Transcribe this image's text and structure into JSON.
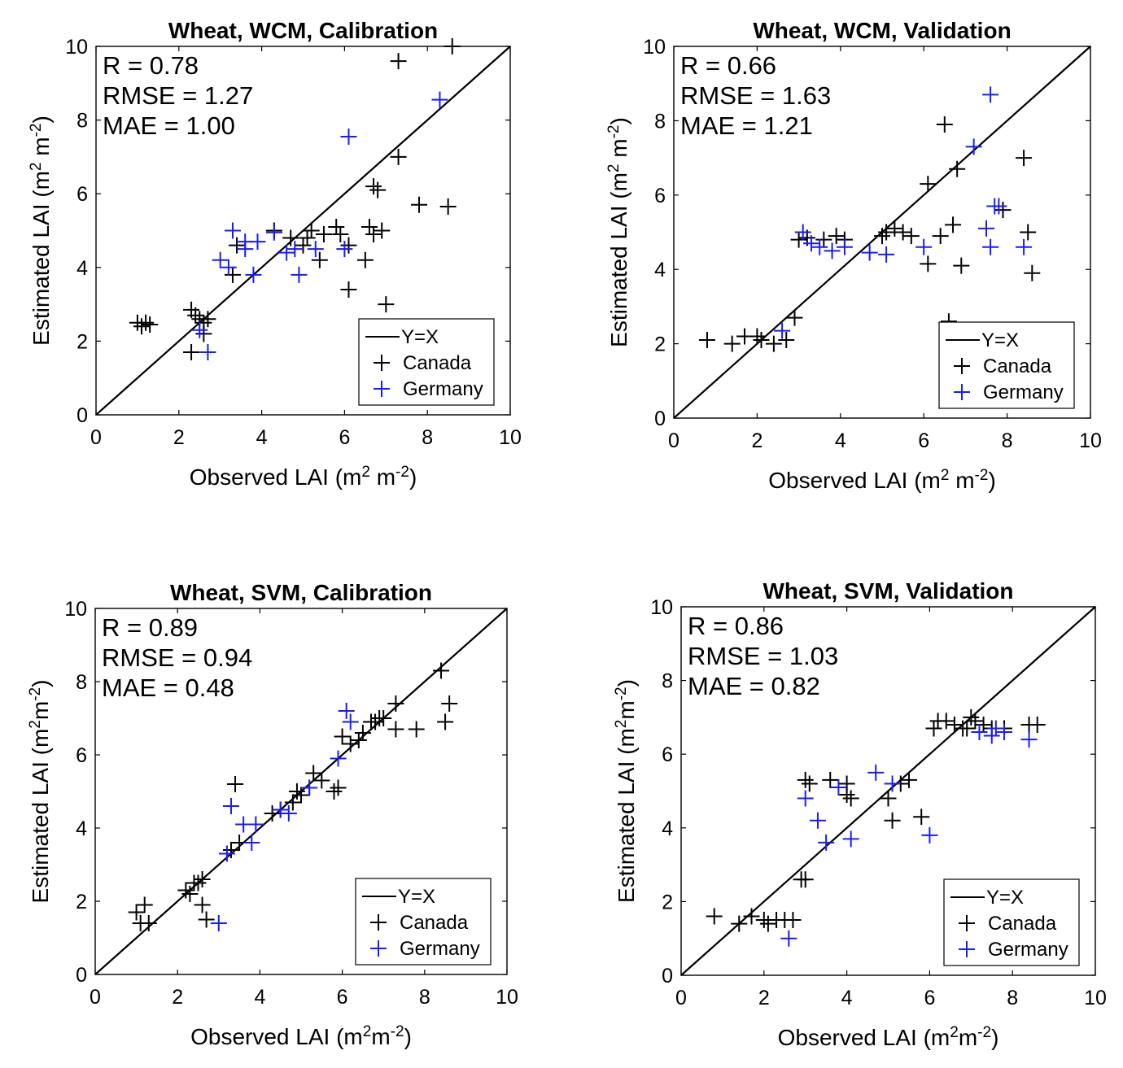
{
  "figure": {
    "label": "LAI scatter plots, wheat, WCM vs SVM"
  },
  "colors": {
    "canada": "#000000",
    "germany": "#1a1aff",
    "axis": "#000000",
    "background": "#ffffff"
  },
  "chart_data": [
    {
      "type": "scatter",
      "title": "Wheat, WCM, Calibration",
      "xlabel": "Observed LAI (m",
      "ylabel": "Estimated LAI (m",
      "unit_sup": "2",
      "unit_mid": " m",
      "unit_sup2": "-2",
      "unit_end": ")",
      "xlim": [
        0,
        10
      ],
      "ylim": [
        0,
        10
      ],
      "xticks": [
        "0",
        "2",
        "4",
        "6",
        "8",
        "10"
      ],
      "yticks": [
        "0",
        "2",
        "4",
        "6",
        "8",
        "10"
      ],
      "stats": [
        "R = 0.78",
        "RMSE = 1.27",
        "MAE = 1.00"
      ],
      "legend": {
        "position": "bottom-right",
        "entries": [
          "Y=X",
          "Canada",
          "Germany"
        ]
      },
      "reference_line": "Y=X",
      "series": [
        {
          "name": "Canada",
          "points": [
            [
              1.0,
              2.5
            ],
            [
              1.1,
              2.4
            ],
            [
              1.2,
              2.5
            ],
            [
              1.3,
              2.45
            ],
            [
              2.3,
              2.85
            ],
            [
              2.4,
              2.7
            ],
            [
              2.5,
              2.6
            ],
            [
              2.6,
              2.5
            ],
            [
              2.6,
              2.2
            ],
            [
              2.7,
              2.6
            ],
            [
              2.3,
              1.7
            ],
            [
              3.3,
              3.8
            ],
            [
              3.4,
              4.6
            ],
            [
              4.3,
              5.0
            ],
            [
              4.7,
              4.8
            ],
            [
              5.0,
              4.6
            ],
            [
              5.1,
              4.8
            ],
            [
              5.2,
              5.0
            ],
            [
              5.4,
              4.2
            ],
            [
              5.5,
              4.9
            ],
            [
              5.8,
              5.1
            ],
            [
              5.9,
              4.9
            ],
            [
              6.1,
              4.6
            ],
            [
              6.1,
              3.4
            ],
            [
              6.5,
              4.2
            ],
            [
              6.6,
              5.1
            ],
            [
              6.7,
              4.9
            ],
            [
              6.7,
              6.2
            ],
            [
              6.8,
              6.1
            ],
            [
              6.9,
              5.0
            ],
            [
              7.0,
              3.0
            ],
            [
              7.3,
              9.6
            ],
            [
              7.3,
              7.0
            ],
            [
              7.8,
              5.7
            ],
            [
              8.5,
              5.65
            ],
            [
              8.6,
              10.0
            ]
          ]
        },
        {
          "name": "Germany",
          "points": [
            [
              2.5,
              2.3
            ],
            [
              2.7,
              1.7
            ],
            [
              3.0,
              4.2
            ],
            [
              3.2,
              4.0
            ],
            [
              3.3,
              5.0
            ],
            [
              3.6,
              4.5
            ],
            [
              3.6,
              4.7
            ],
            [
              3.8,
              3.8
            ],
            [
              3.9,
              4.7
            ],
            [
              4.3,
              4.95
            ],
            [
              4.6,
              4.4
            ],
            [
              4.8,
              4.5
            ],
            [
              4.9,
              3.8
            ],
            [
              5.3,
              4.5
            ],
            [
              6.0,
              4.5
            ],
            [
              6.1,
              7.55
            ],
            [
              8.3,
              8.55
            ]
          ]
        }
      ]
    },
    {
      "type": "scatter",
      "title": "Wheat, WCM, Validation",
      "xlabel": "Observed LAI (m",
      "ylabel": "Estimated LAI (m",
      "unit_sup": "2",
      "unit_mid": " m",
      "unit_sup2": "-2",
      "unit_end": ")",
      "xlim": [
        0,
        10
      ],
      "ylim": [
        0,
        10
      ],
      "xticks": [
        "0",
        "2",
        "4",
        "6",
        "8",
        "10"
      ],
      "yticks": [
        "0",
        "2",
        "4",
        "6",
        "8",
        "10"
      ],
      "stats": [
        "R = 0.66",
        "RMSE = 1.63",
        "MAE = 1.21"
      ],
      "legend": {
        "position": "bottom-right",
        "entries": [
          "Y=X",
          "Canada",
          "Germany"
        ]
      },
      "reference_line": "Y=X",
      "series": [
        {
          "name": "Canada",
          "points": [
            [
              0.8,
              2.1
            ],
            [
              1.4,
              2.0
            ],
            [
              1.7,
              2.2
            ],
            [
              2.0,
              2.2
            ],
            [
              2.1,
              2.1
            ],
            [
              2.4,
              2.0
            ],
            [
              2.7,
              2.1
            ],
            [
              2.9,
              2.7
            ],
            [
              3.0,
              4.8
            ],
            [
              3.2,
              4.85
            ],
            [
              3.6,
              4.8
            ],
            [
              3.9,
              4.9
            ],
            [
              4.1,
              4.8
            ],
            [
              5.0,
              4.9
            ],
            [
              5.1,
              5.0
            ],
            [
              5.3,
              5.1
            ],
            [
              5.5,
              5.0
            ],
            [
              5.7,
              4.9
            ],
            [
              6.1,
              6.3
            ],
            [
              6.4,
              4.9
            ],
            [
              6.5,
              7.9
            ],
            [
              6.6,
              2.6
            ],
            [
              6.7,
              5.2
            ],
            [
              6.8,
              6.7
            ],
            [
              6.9,
              4.1
            ],
            [
              7.9,
              5.6
            ],
            [
              8.4,
              7.0
            ],
            [
              8.5,
              5.0
            ],
            [
              8.6,
              3.9
            ],
            [
              6.1,
              4.15
            ]
          ]
        },
        {
          "name": "Germany",
          "points": [
            [
              2.6,
              2.35
            ],
            [
              3.1,
              5.0
            ],
            [
              3.3,
              4.7
            ],
            [
              3.5,
              4.6
            ],
            [
              3.8,
              4.5
            ],
            [
              4.1,
              4.6
            ],
            [
              4.7,
              4.45
            ],
            [
              5.1,
              4.4
            ],
            [
              6.0,
              4.6
            ],
            [
              7.2,
              7.3
            ],
            [
              7.5,
              5.1
            ],
            [
              7.6,
              8.7
            ],
            [
              7.7,
              5.7
            ],
            [
              7.8,
              5.7
            ],
            [
              7.6,
              4.6
            ],
            [
              8.4,
              4.6
            ]
          ]
        }
      ]
    },
    {
      "type": "scatter",
      "title": "Wheat, SVM, Calibration",
      "xlabel": "Observed LAI (m",
      "ylabel": "Estimated LAI (m",
      "unit_sup": "2",
      "unit_mid": "m",
      "unit_sup2": "-2",
      "unit_end": ")",
      "xlim": [
        0,
        10
      ],
      "ylim": [
        0,
        10
      ],
      "xticks": [
        "0",
        "2",
        "4",
        "6",
        "8",
        "10"
      ],
      "yticks": [
        "0",
        "2",
        "4",
        "6",
        "8",
        "10"
      ],
      "stats": [
        "R = 0.89",
        "RMSE = 0.94",
        "MAE = 0.48"
      ],
      "legend": {
        "position": "bottom-right",
        "entries": [
          "Y=X",
          "Canada",
          "Germany"
        ]
      },
      "reference_line": "Y=X",
      "series": [
        {
          "name": "Canada",
          "points": [
            [
              1.0,
              1.7
            ],
            [
              1.1,
              1.4
            ],
            [
              1.2,
              1.9
            ],
            [
              1.3,
              1.4
            ],
            [
              2.2,
              2.3
            ],
            [
              2.3,
              2.2
            ],
            [
              2.4,
              2.5
            ],
            [
              2.5,
              2.5
            ],
            [
              2.6,
              2.6
            ],
            [
              2.6,
              1.9
            ],
            [
              2.7,
              1.5
            ],
            [
              3.4,
              5.2
            ],
            [
              3.3,
              3.4
            ],
            [
              3.5,
              3.6
            ],
            [
              4.3,
              4.4
            ],
            [
              4.5,
              4.5
            ],
            [
              4.8,
              4.7
            ],
            [
              4.9,
              5.0
            ],
            [
              5.0,
              4.9
            ],
            [
              5.2,
              5.1
            ],
            [
              5.3,
              5.5
            ],
            [
              5.5,
              5.3
            ],
            [
              5.8,
              5.0
            ],
            [
              5.9,
              5.1
            ],
            [
              6.0,
              6.5
            ],
            [
              6.2,
              6.3
            ],
            [
              6.4,
              6.4
            ],
            [
              6.5,
              6.6
            ],
            [
              6.7,
              6.9
            ],
            [
              6.8,
              6.9
            ],
            [
              6.9,
              7.0
            ],
            [
              7.0,
              7.0
            ],
            [
              7.3,
              7.4
            ],
            [
              7.3,
              6.7
            ],
            [
              7.8,
              6.7
            ],
            [
              8.4,
              8.3
            ],
            [
              8.5,
              6.9
            ],
            [
              8.6,
              7.4
            ]
          ]
        },
        {
          "name": "Germany",
          "points": [
            [
              3.0,
              1.4
            ],
            [
              3.2,
              3.3
            ],
            [
              3.3,
              4.6
            ],
            [
              3.6,
              4.1
            ],
            [
              3.8,
              3.6
            ],
            [
              3.9,
              4.1
            ],
            [
              4.5,
              4.5
            ],
            [
              4.7,
              4.4
            ],
            [
              5.2,
              5.1
            ],
            [
              5.9,
              5.9
            ],
            [
              6.1,
              7.2
            ],
            [
              6.2,
              6.9
            ]
          ]
        }
      ]
    },
    {
      "type": "scatter",
      "title": "Wheat, SVM, Validation",
      "xlabel": "Observed LAI (m",
      "ylabel": "Estimated LAI (m",
      "unit_sup": "2",
      "unit_mid": "m",
      "unit_sup2": "-2",
      "unit_end": ")",
      "xlim": [
        0,
        10
      ],
      "ylim": [
        0,
        10
      ],
      "xticks": [
        "0",
        "2",
        "4",
        "6",
        "8",
        "10"
      ],
      "yticks": [
        "0",
        "2",
        "4",
        "6",
        "8",
        "10"
      ],
      "stats": [
        "R = 0.86",
        "RMSE = 1.03",
        "MAE = 0.82"
      ],
      "legend": {
        "position": "bottom-right",
        "entries": [
          "Y=X",
          "Canada",
          "Germany"
        ]
      },
      "reference_line": "Y=X",
      "series": [
        {
          "name": "Canada",
          "points": [
            [
              0.8,
              1.6
            ],
            [
              1.4,
              1.4
            ],
            [
              1.7,
              1.6
            ],
            [
              2.0,
              1.5
            ],
            [
              2.1,
              1.4
            ],
            [
              2.3,
              1.5
            ],
            [
              2.5,
              1.5
            ],
            [
              2.7,
              1.5
            ],
            [
              2.9,
              2.6
            ],
            [
              3.0,
              2.6
            ],
            [
              3.0,
              5.3
            ],
            [
              3.1,
              5.2
            ],
            [
              3.6,
              5.3
            ],
            [
              4.0,
              5.2
            ],
            [
              4.1,
              4.8
            ],
            [
              4.0,
              4.9
            ],
            [
              5.0,
              4.8
            ],
            [
              5.1,
              4.2
            ],
            [
              5.3,
              5.2
            ],
            [
              5.5,
              5.3
            ],
            [
              5.8,
              4.3
            ],
            [
              6.1,
              6.7
            ],
            [
              6.2,
              6.9
            ],
            [
              6.4,
              6.9
            ],
            [
              6.6,
              6.8
            ],
            [
              6.8,
              6.7
            ],
            [
              6.9,
              6.7
            ],
            [
              7.0,
              7.0
            ],
            [
              7.1,
              6.9
            ],
            [
              7.3,
              6.8
            ],
            [
              7.5,
              6.7
            ],
            [
              7.8,
              6.7
            ],
            [
              8.4,
              6.8
            ],
            [
              8.6,
              6.8
            ]
          ]
        },
        {
          "name": "Germany",
          "points": [
            [
              2.6,
              1.0
            ],
            [
              3.0,
              4.8
            ],
            [
              3.3,
              4.2
            ],
            [
              3.5,
              3.6
            ],
            [
              3.8,
              5.1
            ],
            [
              4.1,
              3.7
            ],
            [
              4.7,
              5.5
            ],
            [
              5.1,
              5.2
            ],
            [
              6.0,
              3.8
            ],
            [
              7.2,
              6.6
            ],
            [
              7.5,
              6.5
            ],
            [
              7.6,
              6.7
            ],
            [
              7.8,
              6.6
            ],
            [
              8.4,
              6.4
            ]
          ]
        }
      ]
    }
  ]
}
